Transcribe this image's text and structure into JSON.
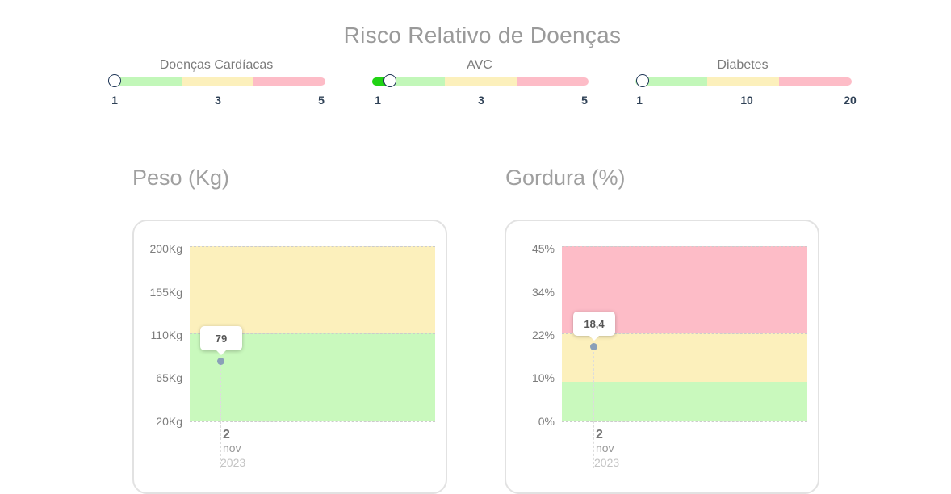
{
  "page_title": "Risco Relativo de Doenças",
  "risks": [
    {
      "label": "Doenças Cardíacas",
      "min": 1,
      "mid": 3,
      "max": 5,
      "ticks": [
        "1",
        "3",
        "5"
      ],
      "value": 1
    },
    {
      "label": "AVC",
      "min": 1,
      "mid": 3,
      "max": 5,
      "ticks": [
        "1",
        "3",
        "5"
      ],
      "value": 1.3
    },
    {
      "label": "Diabetes",
      "min": 1,
      "mid": 10,
      "max": 20,
      "ticks": [
        "1",
        "10",
        "20"
      ],
      "value": 1
    }
  ],
  "colors": {
    "green_zone": "#c2f7b9",
    "yellow_zone": "#fcf0bc",
    "red_zone": "#fdbcc7",
    "knob_border": "#1d3455",
    "fill": "#21d314"
  },
  "charts": [
    {
      "title": "Peso (Kg)",
      "y_ticks": [
        "200Kg",
        "155Kg",
        "110Kg",
        "65Kg",
        "20Kg"
      ],
      "point_label": "79",
      "date_day": "2",
      "date_month": "nov",
      "date_year": "2023"
    },
    {
      "title": "Gordura (%)",
      "y_ticks": [
        "45%",
        "34%",
        "22%",
        "10%",
        "0%"
      ],
      "point_label": "18,4",
      "date_day": "2",
      "date_month": "nov",
      "date_year": "2023"
    }
  ],
  "chart_data": [
    {
      "type": "scatter",
      "title": "Peso (Kg)",
      "x": [
        "2 nov 2023"
      ],
      "y": [
        79
      ],
      "ylim": [
        20,
        200
      ],
      "bands": [
        {
          "from": 20,
          "to": 110,
          "color": "green"
        },
        {
          "from": 110,
          "to": 200,
          "color": "yellow"
        }
      ]
    },
    {
      "type": "scatter",
      "title": "Gordura (%)",
      "x": [
        "2 nov 2023"
      ],
      "y": [
        18.4
      ],
      "ylim": [
        0,
        45
      ],
      "bands": [
        {
          "from": 0,
          "to": 10,
          "color": "green"
        },
        {
          "from": 10,
          "to": 22,
          "color": "yellow"
        },
        {
          "from": 22,
          "to": 45,
          "color": "red"
        }
      ]
    }
  ]
}
